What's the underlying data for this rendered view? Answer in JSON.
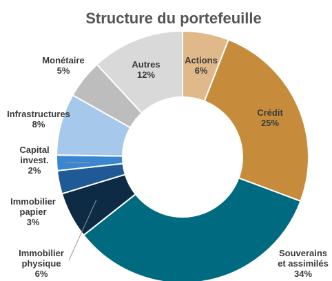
{
  "chart_data": {
    "type": "donut",
    "title": "Structure du portefeuille",
    "categories": [
      [
        "Actions"
      ],
      [
        "Crédit"
      ],
      [
        "Souverains",
        "et assimilés"
      ],
      [
        "Immobilier",
        "physique"
      ],
      [
        "Immobilier",
        "papier"
      ],
      [
        "Capital",
        "invest."
      ],
      [
        "Infrastructures"
      ],
      [
        "Monétaire"
      ],
      [
        "Autres"
      ]
    ],
    "values": [
      6,
      25,
      34,
      6,
      3,
      2,
      8,
      5,
      12
    ],
    "value_labels": [
      "6%",
      "25%",
      "34%",
      "6%",
      "3%",
      "2%",
      "8%",
      "5%",
      "12%"
    ],
    "colors": [
      "#e0b98a",
      "#c68c3c",
      "#006a80",
      "#0d2b45",
      "#1f5a96",
      "#3a86d0",
      "#a6c8ea",
      "#bdbdbd",
      "#d9d9d9"
    ]
  }
}
